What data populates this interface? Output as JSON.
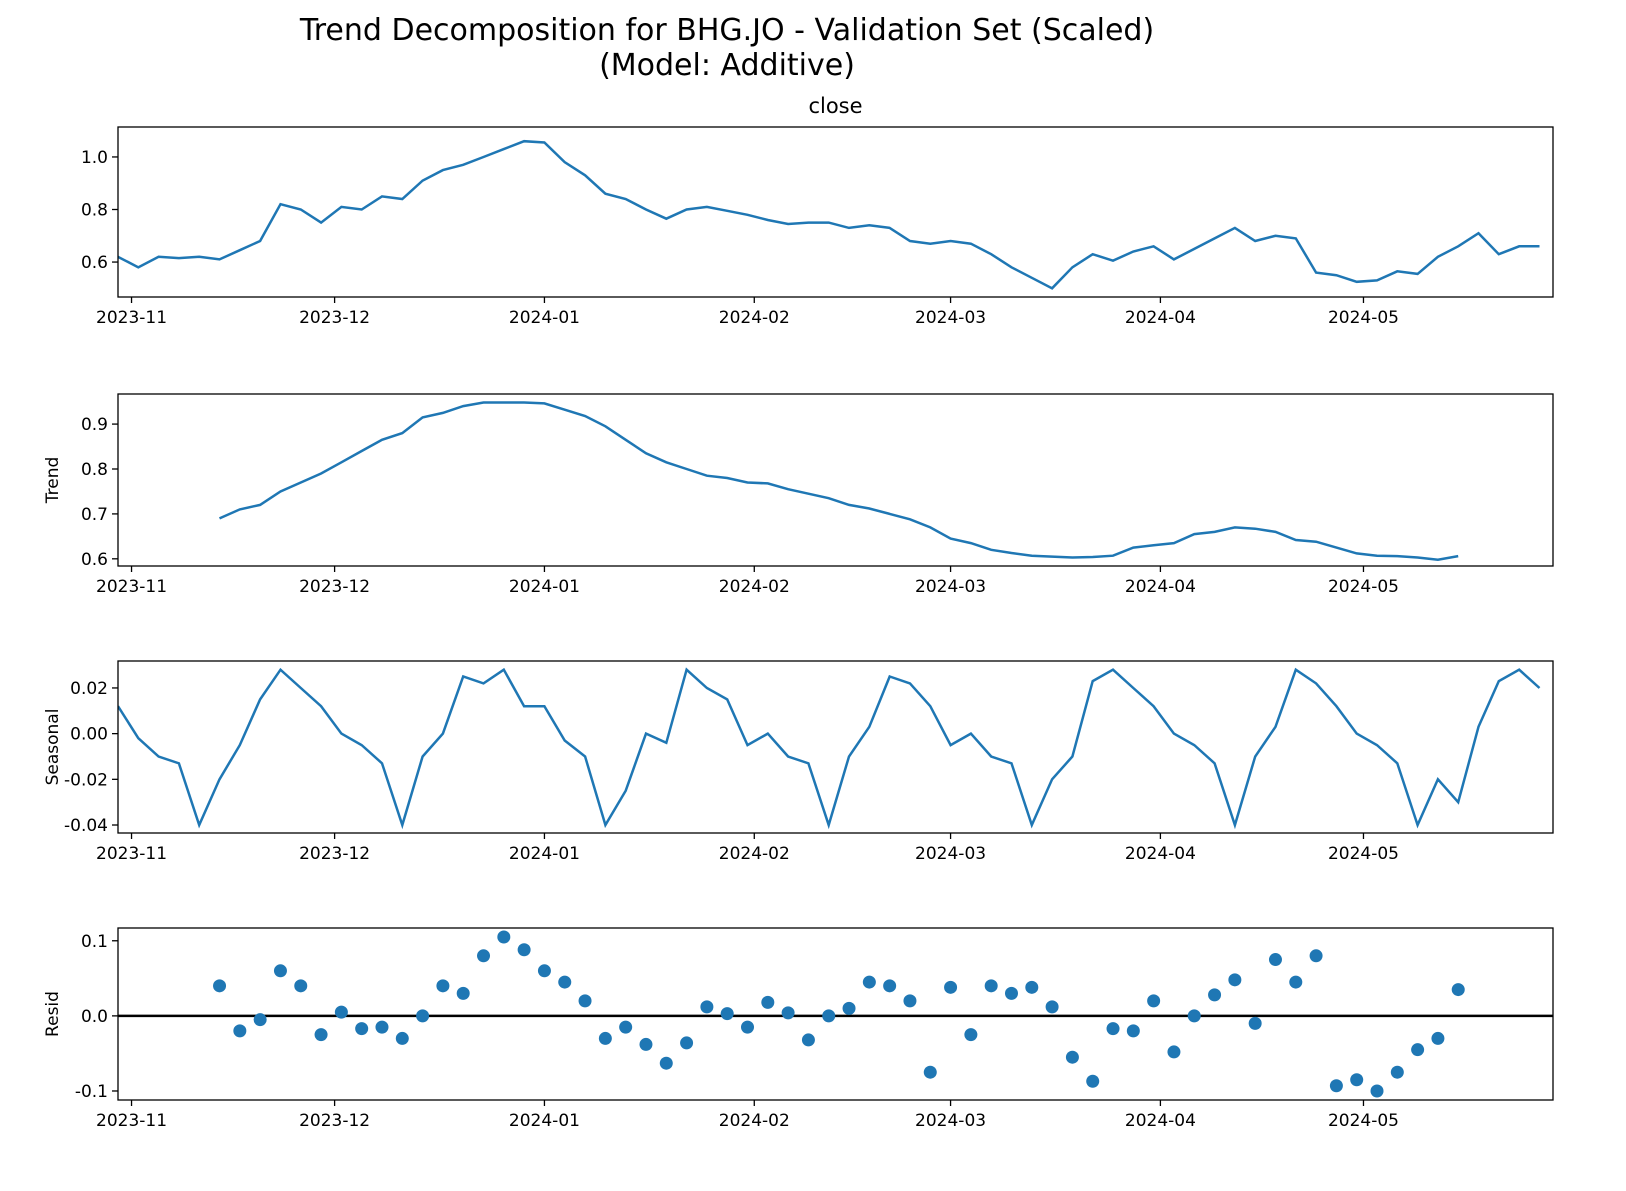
{
  "title": [
    "Trend Decomposition for BHG.JO - Validation Set (Scaled)",
    "(Model: Additive)"
  ],
  "chart_data": [
    {
      "type": "line",
      "title": "close",
      "color": "#1f77b4",
      "x": [
        -2,
        1,
        4,
        7,
        10,
        13,
        16,
        19,
        22,
        25,
        28,
        31,
        34,
        37,
        40,
        43,
        46,
        49,
        52,
        55,
        58,
        61,
        64,
        67,
        70,
        73,
        76,
        79,
        82,
        85,
        88,
        91,
        94,
        97,
        100,
        103,
        106,
        109,
        112,
        115,
        118,
        121,
        124,
        127,
        130,
        133,
        136,
        139,
        142,
        145,
        148,
        151,
        154,
        157,
        160,
        163,
        166,
        169,
        172,
        175,
        178,
        181,
        184,
        187,
        190,
        193,
        196,
        199,
        202,
        205,
        208
      ],
      "values": [
        0.62,
        0.58,
        0.62,
        0.615,
        0.62,
        0.61,
        0.645,
        0.68,
        0.82,
        0.8,
        0.75,
        0.81,
        0.8,
        0.85,
        0.84,
        0.91,
        0.95,
        0.97,
        1.0,
        1.03,
        1.06,
        1.055,
        0.98,
        0.93,
        0.86,
        0.84,
        0.8,
        0.765,
        0.8,
        0.81,
        0.795,
        0.78,
        0.76,
        0.745,
        0.75,
        0.75,
        0.73,
        0.74,
        0.73,
        0.68,
        0.67,
        0.68,
        0.67,
        0.63,
        0.58,
        0.54,
        0.5,
        0.58,
        0.63,
        0.605,
        0.64,
        0.66,
        0.61,
        0.65,
        0.69,
        0.73,
        0.68,
        0.7,
        0.69,
        0.56,
        0.55,
        0.525,
        0.53,
        0.565,
        0.555,
        0.62,
        0.66,
        0.71,
        0.63,
        0.66,
        0.66
      ],
      "xlim": [
        -2,
        210
      ],
      "xticks": [
        {
          "value": 0,
          "label": "2023-11"
        },
        {
          "value": 30,
          "label": "2023-12"
        },
        {
          "value": 61,
          "label": "2024-01"
        },
        {
          "value": 92,
          "label": "2024-02"
        },
        {
          "value": 121,
          "label": "2024-03"
        },
        {
          "value": 152,
          "label": "2024-04"
        },
        {
          "value": 182,
          "label": "2024-05"
        }
      ],
      "ylim": [
        0.467,
        1.114
      ],
      "yticks": [
        0.6,
        0.8,
        {
          "value": 1,
          "label": "1.0"
        }
      ]
    },
    {
      "type": "line",
      "ylabel": "Trend",
      "color": "#1f77b4",
      "x": [
        -2,
        1,
        4,
        7,
        10,
        13,
        16,
        19,
        22,
        25,
        28,
        31,
        34,
        37,
        40,
        43,
        46,
        49,
        52,
        55,
        58,
        61,
        64,
        67,
        70,
        73,
        76,
        79,
        82,
        85,
        88,
        91,
        94,
        97,
        100,
        103,
        106,
        109,
        112,
        115,
        118,
        121,
        124,
        127,
        130,
        133,
        136,
        139,
        142,
        145,
        148,
        151,
        154,
        157,
        160,
        163,
        166,
        169,
        172,
        175,
        178,
        181,
        184,
        187,
        190,
        193,
        196,
        199,
        202,
        205,
        208
      ],
      "values": [
        null,
        null,
        null,
        null,
        null,
        0.69,
        0.71,
        0.72,
        0.75,
        0.77,
        0.79,
        0.815,
        0.84,
        0.865,
        0.88,
        0.915,
        0.925,
        0.94,
        0.948,
        0.948,
        0.948,
        0.946,
        0.932,
        0.918,
        0.895,
        0.865,
        0.835,
        0.815,
        0.8,
        0.785,
        0.78,
        0.77,
        0.768,
        0.755,
        0.745,
        0.735,
        0.72,
        0.712,
        0.7,
        0.688,
        0.67,
        0.645,
        0.635,
        0.62,
        0.613,
        0.607,
        0.605,
        0.603,
        0.604,
        0.607,
        0.625,
        0.63,
        0.635,
        0.655,
        0.66,
        0.67,
        0.667,
        0.66,
        0.642,
        0.638,
        0.625,
        0.612,
        0.607,
        0.606,
        0.603,
        0.598,
        0.606,
        null,
        null,
        null,
        null
      ],
      "xlim": [
        -2,
        210
      ],
      "xticks": [
        {
          "value": 0,
          "label": "2023-11"
        },
        {
          "value": 30,
          "label": "2023-12"
        },
        {
          "value": 61,
          "label": "2024-01"
        },
        {
          "value": 92,
          "label": "2024-02"
        },
        {
          "value": 121,
          "label": "2024-03"
        },
        {
          "value": 152,
          "label": "2024-04"
        },
        {
          "value": 182,
          "label": "2024-05"
        }
      ],
      "ylim": [
        0.584,
        0.967
      ],
      "yticks": [
        0.6,
        0.7,
        0.8,
        0.9
      ]
    },
    {
      "type": "line",
      "ylabel": "Seasonal",
      "color": "#1f77b4",
      "x": [
        -2,
        1,
        4,
        7,
        10,
        13,
        16,
        19,
        22,
        25,
        28,
        31,
        34,
        37,
        40,
        43,
        46,
        49,
        52,
        55,
        58,
        61,
        64,
        67,
        70,
        73,
        76,
        79,
        82,
        85,
        88,
        91,
        94,
        97,
        100,
        103,
        106,
        109,
        112,
        115,
        118,
        121,
        124,
        127,
        130,
        133,
        136,
        139,
        142,
        145,
        148,
        151,
        154,
        157,
        160,
        163,
        166,
        169,
        172,
        175,
        178,
        181,
        184,
        187,
        190,
        193,
        196,
        199,
        202,
        205,
        208
      ],
      "values": [
        0.012,
        -0.002,
        -0.01,
        -0.013,
        -0.04,
        -0.02,
        -0.005,
        0.015,
        0.028,
        0.02,
        0.012,
        0.0,
        -0.005,
        -0.013,
        -0.04,
        -0.01,
        0.0,
        0.025,
        0.022,
        0.028,
        0.012,
        0.012,
        -0.003,
        -0.01,
        -0.04,
        -0.025,
        0.0,
        -0.004,
        0.028,
        0.02,
        0.015,
        -0.005,
        0.0,
        -0.01,
        -0.013,
        -0.04,
        -0.01,
        0.003,
        0.025,
        0.022,
        0.012,
        -0.005,
        0.0,
        -0.01,
        -0.013,
        -0.04,
        -0.02,
        -0.01,
        0.023,
        0.028,
        0.02,
        0.012,
        0.0,
        -0.005,
        -0.013,
        -0.04,
        -0.01,
        0.003,
        0.028,
        0.022,
        0.012,
        0.0,
        -0.005,
        -0.013,
        -0.04,
        -0.02,
        -0.03,
        0.003,
        0.023,
        0.028,
        0.02
      ],
      "xlim": [
        -2,
        210
      ],
      "xticks": [
        {
          "value": 0,
          "label": "2023-11"
        },
        {
          "value": 30,
          "label": "2023-12"
        },
        {
          "value": 61,
          "label": "2024-01"
        },
        {
          "value": 92,
          "label": "2024-02"
        },
        {
          "value": 121,
          "label": "2024-03"
        },
        {
          "value": 152,
          "label": "2024-04"
        },
        {
          "value": 182,
          "label": "2024-05"
        }
      ],
      "ylim": [
        -0.0435,
        0.0318
      ],
      "yticks": [
        -0.04,
        -0.02,
        {
          "value": 0,
          "label": "0.00"
        },
        0.02
      ]
    },
    {
      "type": "scatter",
      "ylabel": "Resid",
      "color": "#1f77b4",
      "hline": 0,
      "x": [
        -2,
        1,
        4,
        7,
        10,
        13,
        16,
        19,
        22,
        25,
        28,
        31,
        34,
        37,
        40,
        43,
        46,
        49,
        52,
        55,
        58,
        61,
        64,
        67,
        70,
        73,
        76,
        79,
        82,
        85,
        88,
        91,
        94,
        97,
        100,
        103,
        106,
        109,
        112,
        115,
        118,
        121,
        124,
        127,
        130,
        133,
        136,
        139,
        142,
        145,
        148,
        151,
        154,
        157,
        160,
        163,
        166,
        169,
        172,
        175,
        178,
        181,
        184,
        187,
        190,
        193,
        196,
        199,
        202,
        205,
        208
      ],
      "values": [
        null,
        null,
        null,
        null,
        null,
        0.04,
        -0.02,
        -0.005,
        0.06,
        0.04,
        -0.025,
        0.005,
        -0.017,
        -0.015,
        -0.03,
        0.0,
        0.04,
        0.03,
        0.08,
        0.105,
        0.088,
        0.06,
        0.045,
        0.02,
        -0.03,
        -0.015,
        -0.038,
        -0.063,
        -0.036,
        0.012,
        0.003,
        -0.015,
        0.018,
        0.004,
        -0.032,
        0.0,
        0.01,
        0.045,
        0.04,
        0.02,
        -0.075,
        0.038,
        -0.025,
        0.04,
        0.03,
        0.038,
        0.012,
        -0.055,
        -0.087,
        -0.017,
        -0.02,
        0.02,
        -0.048,
        0.0,
        0.028,
        0.048,
        -0.01,
        0.075,
        0.045,
        0.08,
        -0.093,
        -0.085,
        -0.1,
        -0.075,
        -0.045,
        -0.03,
        0.035,
        null,
        null,
        null,
        null
      ],
      "xlim": [
        -2,
        210
      ],
      "xticks": [
        {
          "value": 0,
          "label": "2023-11"
        },
        {
          "value": 30,
          "label": "2023-12"
        },
        {
          "value": 61,
          "label": "2024-01"
        },
        {
          "value": 92,
          "label": "2024-02"
        },
        {
          "value": 121,
          "label": "2024-03"
        },
        {
          "value": 152,
          "label": "2024-04"
        },
        {
          "value": 182,
          "label": "2024-05"
        }
      ],
      "ylim": [
        -0.112,
        0.117
      ],
      "yticks": [
        -0.1,
        {
          "value": 0,
          "label": "0.0"
        },
        0.1
      ]
    }
  ]
}
